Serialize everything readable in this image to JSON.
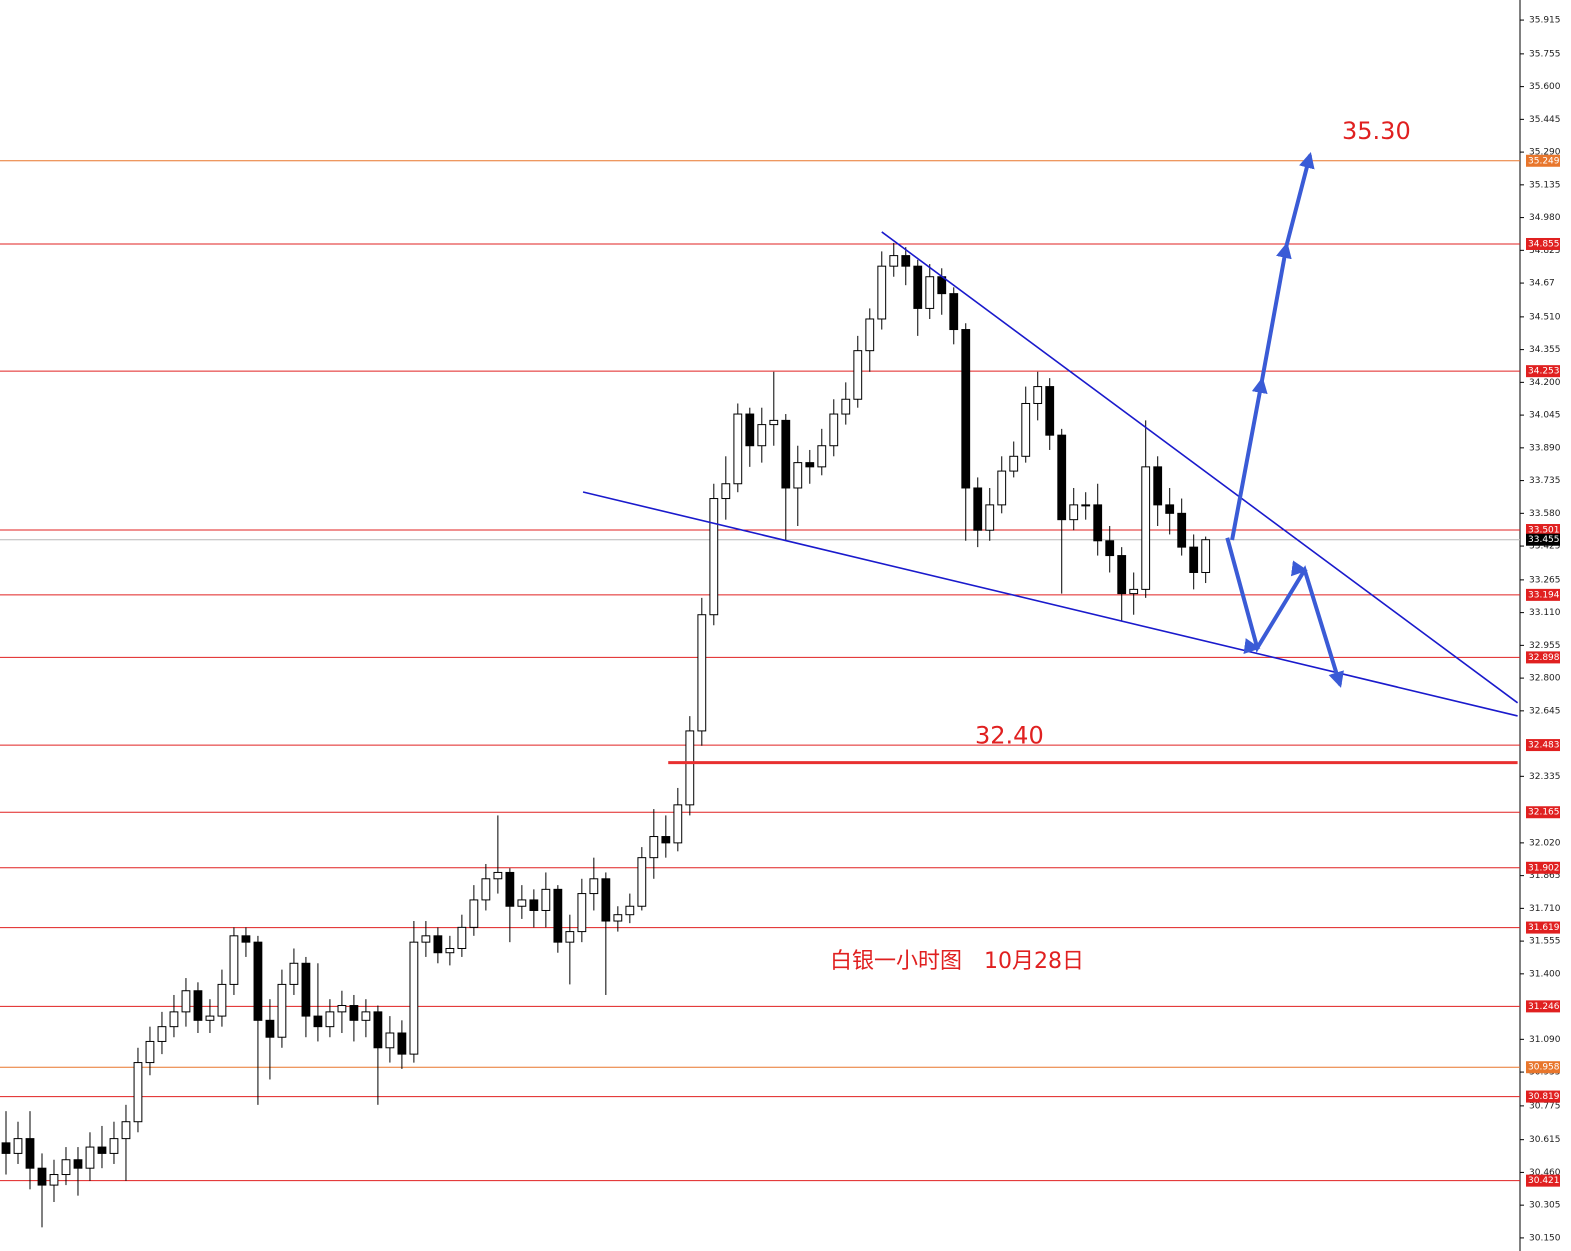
{
  "chart_data": {
    "type": "candlestick",
    "candles": [
      [
        30.6,
        30.75,
        30.45,
        30.55
      ],
      [
        30.55,
        30.7,
        30.5,
        30.62
      ],
      [
        30.62,
        30.75,
        30.38,
        30.48
      ],
      [
        30.48,
        30.55,
        30.2,
        30.4
      ],
      [
        30.4,
        30.52,
        30.32,
        30.45
      ],
      [
        30.45,
        30.58,
        30.4,
        30.52
      ],
      [
        30.52,
        30.58,
        30.35,
        30.48
      ],
      [
        30.48,
        30.65,
        30.42,
        30.58
      ],
      [
        30.58,
        30.68,
        30.48,
        30.55
      ],
      [
        30.55,
        30.7,
        30.5,
        30.62
      ],
      [
        30.62,
        30.78,
        30.42,
        30.7
      ],
      [
        30.7,
        31.05,
        30.65,
        30.98
      ],
      [
        30.98,
        31.15,
        30.92,
        31.08
      ],
      [
        31.08,
        31.22,
        31.02,
        31.15
      ],
      [
        31.15,
        31.3,
        31.1,
        31.22
      ],
      [
        31.22,
        31.38,
        31.15,
        31.32
      ],
      [
        31.32,
        31.36,
        31.12,
        31.18
      ],
      [
        31.18,
        31.28,
        31.12,
        31.2
      ],
      [
        31.2,
        31.42,
        31.15,
        31.35
      ],
      [
        31.35,
        31.62,
        31.3,
        31.58
      ],
      [
        31.58,
        31.62,
        31.48,
        31.55
      ],
      [
        31.55,
        31.58,
        30.78,
        31.18
      ],
      [
        31.18,
        31.28,
        30.9,
        31.1
      ],
      [
        31.1,
        31.42,
        31.05,
        31.35
      ],
      [
        31.35,
        31.52,
        31.3,
        31.45
      ],
      [
        31.45,
        31.48,
        31.1,
        31.2
      ],
      [
        31.2,
        31.45,
        31.08,
        31.15
      ],
      [
        31.15,
        31.28,
        31.1,
        31.22
      ],
      [
        31.22,
        31.32,
        31.12,
        31.25
      ],
      [
        31.25,
        31.3,
        31.08,
        31.18
      ],
      [
        31.18,
        31.28,
        31.1,
        31.22
      ],
      [
        31.22,
        31.25,
        30.78,
        31.05
      ],
      [
        31.05,
        31.2,
        30.98,
        31.12
      ],
      [
        31.12,
        31.18,
        30.95,
        31.02
      ],
      [
        31.02,
        31.65,
        30.98,
        31.55
      ],
      [
        31.55,
        31.65,
        31.48,
        31.58
      ],
      [
        31.58,
        31.62,
        31.45,
        31.5
      ],
      [
        31.5,
        31.58,
        31.44,
        31.52
      ],
      [
        31.52,
        31.68,
        31.48,
        31.62
      ],
      [
        31.62,
        31.82,
        31.58,
        31.75
      ],
      [
        31.75,
        31.92,
        31.7,
        31.85
      ],
      [
        31.85,
        32.15,
        31.78,
        31.88
      ],
      [
        31.88,
        31.9,
        31.55,
        31.72
      ],
      [
        31.72,
        31.82,
        31.66,
        31.75
      ],
      [
        31.75,
        31.8,
        31.62,
        31.7
      ],
      [
        31.7,
        31.88,
        31.62,
        31.8
      ],
      [
        31.8,
        31.82,
        31.5,
        31.55
      ],
      [
        31.55,
        31.68,
        31.35,
        31.6
      ],
      [
        31.6,
        31.85,
        31.55,
        31.78
      ],
      [
        31.78,
        31.95,
        31.7,
        31.85
      ],
      [
        31.85,
        31.88,
        31.3,
        31.65
      ],
      [
        31.65,
        31.72,
        31.6,
        31.68
      ],
      [
        31.68,
        31.78,
        31.64,
        31.72
      ],
      [
        31.72,
        32.0,
        31.7,
        31.95
      ],
      [
        31.95,
        32.18,
        31.85,
        32.05
      ],
      [
        32.05,
        32.15,
        31.95,
        32.02
      ],
      [
        32.02,
        32.28,
        31.98,
        32.2
      ],
      [
        32.2,
        32.62,
        32.15,
        32.55
      ],
      [
        32.55,
        33.18,
        32.48,
        33.1
      ],
      [
        33.1,
        33.72,
        33.05,
        33.65
      ],
      [
        33.65,
        33.85,
        33.55,
        33.72
      ],
      [
        33.72,
        34.1,
        33.68,
        34.05
      ],
      [
        34.05,
        34.08,
        33.8,
        33.9
      ],
      [
        33.9,
        34.08,
        33.82,
        34.0
      ],
      [
        34.0,
        34.25,
        33.9,
        34.02
      ],
      [
        34.02,
        34.05,
        33.45,
        33.7
      ],
      [
        33.7,
        33.9,
        33.52,
        33.82
      ],
      [
        33.82,
        33.88,
        33.72,
        33.8
      ],
      [
        33.8,
        33.98,
        33.76,
        33.9
      ],
      [
        33.9,
        34.12,
        33.85,
        34.05
      ],
      [
        34.05,
        34.2,
        34.0,
        34.12
      ],
      [
        34.12,
        34.42,
        34.08,
        34.35
      ],
      [
        34.35,
        34.55,
        34.25,
        34.5
      ],
      [
        34.5,
        34.82,
        34.45,
        34.75
      ],
      [
        34.75,
        34.86,
        34.7,
        34.8
      ],
      [
        34.8,
        34.84,
        34.66,
        34.75
      ],
      [
        34.75,
        34.78,
        34.42,
        34.55
      ],
      [
        34.55,
        34.76,
        34.5,
        34.7
      ],
      [
        34.7,
        34.74,
        34.52,
        34.62
      ],
      [
        34.62,
        34.65,
        34.38,
        34.45
      ],
      [
        34.45,
        34.48,
        33.45,
        33.7
      ],
      [
        33.7,
        33.75,
        33.42,
        33.5
      ],
      [
        33.5,
        33.7,
        33.45,
        33.62
      ],
      [
        33.62,
        33.85,
        33.58,
        33.78
      ],
      [
        33.78,
        33.92,
        33.75,
        33.85
      ],
      [
        33.85,
        34.18,
        33.82,
        34.1
      ],
      [
        34.1,
        34.25,
        34.02,
        34.18
      ],
      [
        34.18,
        34.22,
        33.88,
        33.95
      ],
      [
        33.95,
        33.98,
        33.2,
        33.55
      ],
      [
        33.55,
        33.7,
        33.5,
        33.62
      ],
      [
        33.62,
        33.68,
        33.55,
        33.62
      ],
      [
        33.62,
        33.72,
        33.38,
        33.45
      ],
      [
        33.45,
        33.52,
        33.3,
        33.38
      ],
      [
        33.38,
        33.42,
        33.07,
        33.2
      ],
      [
        33.2,
        33.3,
        33.1,
        33.22
      ],
      [
        33.22,
        34.02,
        33.18,
        33.8
      ],
      [
        33.8,
        33.85,
        33.52,
        33.62
      ],
      [
        33.62,
        33.7,
        33.48,
        33.58
      ],
      [
        33.58,
        33.65,
        33.38,
        33.42
      ],
      [
        33.42,
        33.48,
        33.22,
        33.3
      ],
      [
        33.3,
        33.47,
        33.25,
        33.455
      ]
    ],
    "xlim": [
      -0.5,
      126.2
    ],
    "ylim": [
      30.088,
      36.01
    ],
    "yticks": [
      35.915,
      35.755,
      {
        "value": 35.6,
        "label": "35.600"
      },
      35.445,
      {
        "value": 35.29,
        "label": "35.290"
      },
      35.135,
      {
        "value": 34.98,
        "label": "34.980"
      },
      34.825,
      34.67,
      {
        "value": 34.51,
        "label": "34.510"
      },
      34.355,
      {
        "value": 34.2,
        "label": "34.200"
      },
      34.045,
      {
        "value": 33.89,
        "label": "33.890"
      },
      33.735,
      {
        "value": 33.58,
        "label": "33.580"
      },
      33.425,
      33.265,
      {
        "value": 33.11,
        "label": "33.110"
      },
      32.955,
      {
        "value": 32.8,
        "label": "32.800"
      },
      32.645,
      32.335,
      {
        "value": 32.02,
        "label": "32.020"
      },
      31.865,
      {
        "value": 31.71,
        "label": "31.710"
      },
      31.555,
      {
        "value": 31.4,
        "label": "31.400"
      },
      {
        "value": 31.09,
        "label": "31.090"
      },
      30.935,
      30.775,
      30.615,
      {
        "value": 30.46,
        "label": "30.460"
      },
      30.305,
      {
        "value": 30.15,
        "label": "30.150"
      }
    ],
    "levels": [
      {
        "value": 35.249,
        "color": "#e8762c"
      },
      {
        "value": 34.855,
        "color": "#e02020"
      },
      {
        "value": 34.253,
        "color": "#e02020"
      },
      {
        "value": 33.501,
        "color": "#e02020"
      },
      {
        "value": 33.194,
        "color": "#e02020"
      },
      {
        "value": 32.898,
        "color": "#e02020"
      },
      {
        "value": 32.483,
        "color": "#e02020"
      },
      {
        "value": 32.165,
        "color": "#e02020"
      },
      {
        "value": 31.902,
        "color": "#e02020"
      },
      {
        "value": 31.619,
        "color": "#e02020"
      },
      {
        "value": 31.246,
        "color": "#e02020"
      },
      {
        "value": 30.958,
        "color": "#e8762c"
      },
      {
        "value": 30.819,
        "color": "#e02020"
      },
      {
        "value": 30.421,
        "color": "#e02020"
      }
    ],
    "current_price": 33.455,
    "trendlines": [
      {
        "x": [
          73,
          126
        ],
        "y": [
          34.912,
          32.683
        ],
        "color": "#1a1acc"
      },
      {
        "x": [
          48.1,
          126
        ],
        "y": [
          33.681,
          32.621
        ],
        "color": "#1a1acc"
      }
    ],
    "forecast_arrows": [
      {
        "x": [
          101.8,
          104.3,
          108.25,
          111.2
        ],
        "y": [
          33.464,
          32.943,
          33.312,
          32.768
        ],
        "color": "#3a5bd6"
      },
      {
        "x": [
          102.2,
          104.7,
          106.75,
          108.7
        ],
        "y": [
          33.454,
          34.211,
          34.85,
          35.276
        ],
        "color": "#3a5bd6"
      }
    ],
    "target_high": {
      "label": "35.30",
      "value": 35.3
    },
    "support_line": {
      "label": "32.40",
      "value": 32.4,
      "x": [
        55.2,
        126
      ]
    },
    "note": "白银一小时图　10月28日"
  }
}
